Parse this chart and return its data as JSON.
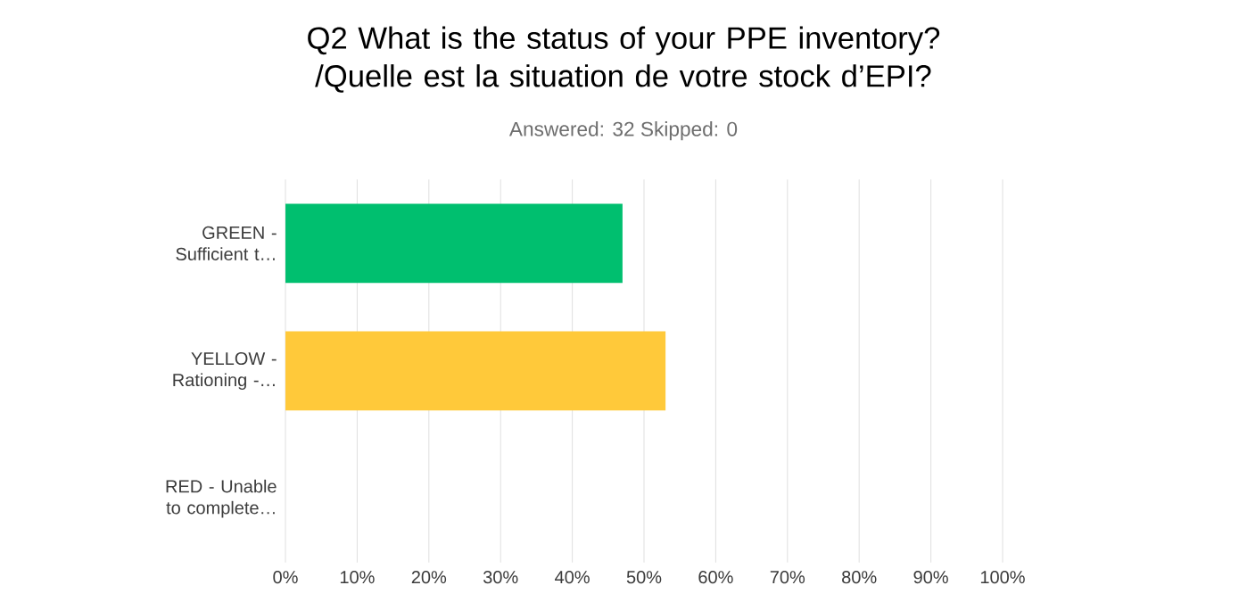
{
  "chart_data": {
    "type": "bar",
    "orientation": "horizontal",
    "title": "Q2 What is the status of your PPE inventory? /Quelle est la situation de votre stock d’EPI?",
    "subtitle": "Answered: 32    Skipped: 0",
    "categories": [
      "GREEN - Sufficient t…",
      "YELLOW - Rationing -…",
      "RED - Unable to complete…"
    ],
    "values": [
      47,
      53,
      0
    ],
    "colors": [
      "#00bf6f",
      "#ffc93a",
      "#f05b4f"
    ],
    "xlim": [
      0,
      100
    ],
    "xticks": [
      {
        "value": 0,
        "label": "0%"
      },
      {
        "value": 10,
        "label": "10%"
      },
      {
        "value": 20,
        "label": "20%"
      },
      {
        "value": 30,
        "label": "30%"
      },
      {
        "value": 40,
        "label": "40%"
      },
      {
        "value": 50,
        "label": "50%"
      },
      {
        "value": 60,
        "label": "60%"
      },
      {
        "value": 70,
        "label": "70%"
      },
      {
        "value": 80,
        "label": "80%"
      },
      {
        "value": 90,
        "label": "90%"
      },
      {
        "value": 100,
        "label": "100%"
      }
    ],
    "grid": "x"
  }
}
